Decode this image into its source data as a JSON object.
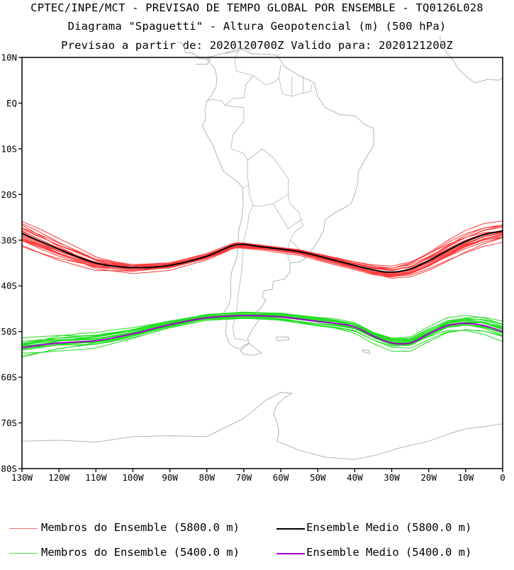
{
  "title_lines": [
    "CPTEC/INPE/MCT - PREVISAO DE TEMPO GLOBAL POR ENSEMBLE - TQ0126L028",
    "Diagrama \"Spaguetti\" - Altura Geopotencial (m) (500 hPa)",
    "Previsao a partir de: 2020120700Z  Valido para: 2020121200Z"
  ],
  "map": {
    "lon_range": [
      -130,
      0
    ],
    "lat_range": [
      -80,
      10
    ],
    "lat_ticks": [
      "10N",
      "EQ",
      "10S",
      "20S",
      "30S",
      "40S",
      "50S",
      "60S",
      "70S",
      "80S"
    ],
    "lon_ticks": [
      "130W",
      "120W",
      "110W",
      "100W",
      "90W",
      "80W",
      "70W",
      "60W",
      "50W",
      "40W",
      "30W",
      "20W",
      "10W",
      "0"
    ],
    "coastline_color": "#b4b4b4"
  },
  "chart_data": {
    "type": "line",
    "x_units": "degrees longitude",
    "y_units": "degrees latitude",
    "series": [
      {
        "name": "Membros do Ensemble (5800.0 m)",
        "color": "#ff3838",
        "role": "members",
        "count": 20,
        "mean_x": [
          -130,
          -120,
          -110,
          -100,
          -90,
          -80,
          -72,
          -65,
          -55,
          -45,
          -35,
          -30,
          -25,
          -20,
          -15,
          -10,
          -5,
          0
        ],
        "mean_y": [
          -28.5,
          -32,
          -35,
          -36,
          -35.5,
          -33.5,
          -31,
          -31.5,
          -32.5,
          -34.5,
          -36.5,
          -37,
          -36.3,
          -34.5,
          -32.3,
          -30.3,
          -28.8,
          -28
        ]
      },
      {
        "name": "Ensemble Medio (5800.0 m)",
        "color": "#000000",
        "role": "mean",
        "x": [
          -130,
          -120,
          -110,
          -100,
          -90,
          -80,
          -72,
          -65,
          -55,
          -45,
          -35,
          -30,
          -25,
          -20,
          -15,
          -10,
          -5,
          0
        ],
        "y": [
          -28.5,
          -32,
          -35,
          -36,
          -35.5,
          -33.5,
          -31,
          -31.5,
          -32.5,
          -34.5,
          -36.5,
          -37,
          -36.3,
          -34.5,
          -32.3,
          -30.3,
          -28.8,
          -28
        ]
      },
      {
        "name": "Membros do Ensemble (5400.0 m)",
        "color": "#22dd22",
        "role": "members",
        "count": 20,
        "mean_x": [
          -130,
          -120,
          -110,
          -100,
          -90,
          -80,
          -70,
          -60,
          -50,
          -45,
          -40,
          -35,
          -30,
          -25,
          -20,
          -15,
          -10,
          -5,
          0
        ],
        "mean_y": [
          -53.5,
          -52.5,
          -52,
          -50.5,
          -48.5,
          -47,
          -46.5,
          -46.8,
          -47.8,
          -48.2,
          -49,
          -51,
          -52.5,
          -52.5,
          -50.5,
          -48.7,
          -48.2,
          -48.7,
          -50
        ]
      },
      {
        "name": "Ensemble Medio (5400.0 m)",
        "color": "#a000c8",
        "role": "mean",
        "x": [
          -130,
          -120,
          -110,
          -100,
          -90,
          -80,
          -70,
          -60,
          -50,
          -45,
          -40,
          -35,
          -30,
          -25,
          -20,
          -15,
          -10,
          -5,
          0
        ],
        "y": [
          -53.5,
          -52.5,
          -52,
          -50.5,
          -48.5,
          -47,
          -46.5,
          -46.8,
          -47.8,
          -48.2,
          -49,
          -51,
          -52.5,
          -52.5,
          -50.5,
          -48.7,
          -48.2,
          -48.7,
          -50
        ]
      }
    ]
  },
  "legend": [
    {
      "label": "Membros do Ensemble (5800.0 m)",
      "color": "#ff6a6a"
    },
    {
      "label": "Ensemble Medio (5800.0 m)",
      "color": "#000000"
    },
    {
      "label": "Membros do Ensemble (5400.0 m)",
      "color": "#44dd44"
    },
    {
      "label": "Ensemble Medio (5400.0 m)",
      "color": "#a000c8"
    }
  ]
}
